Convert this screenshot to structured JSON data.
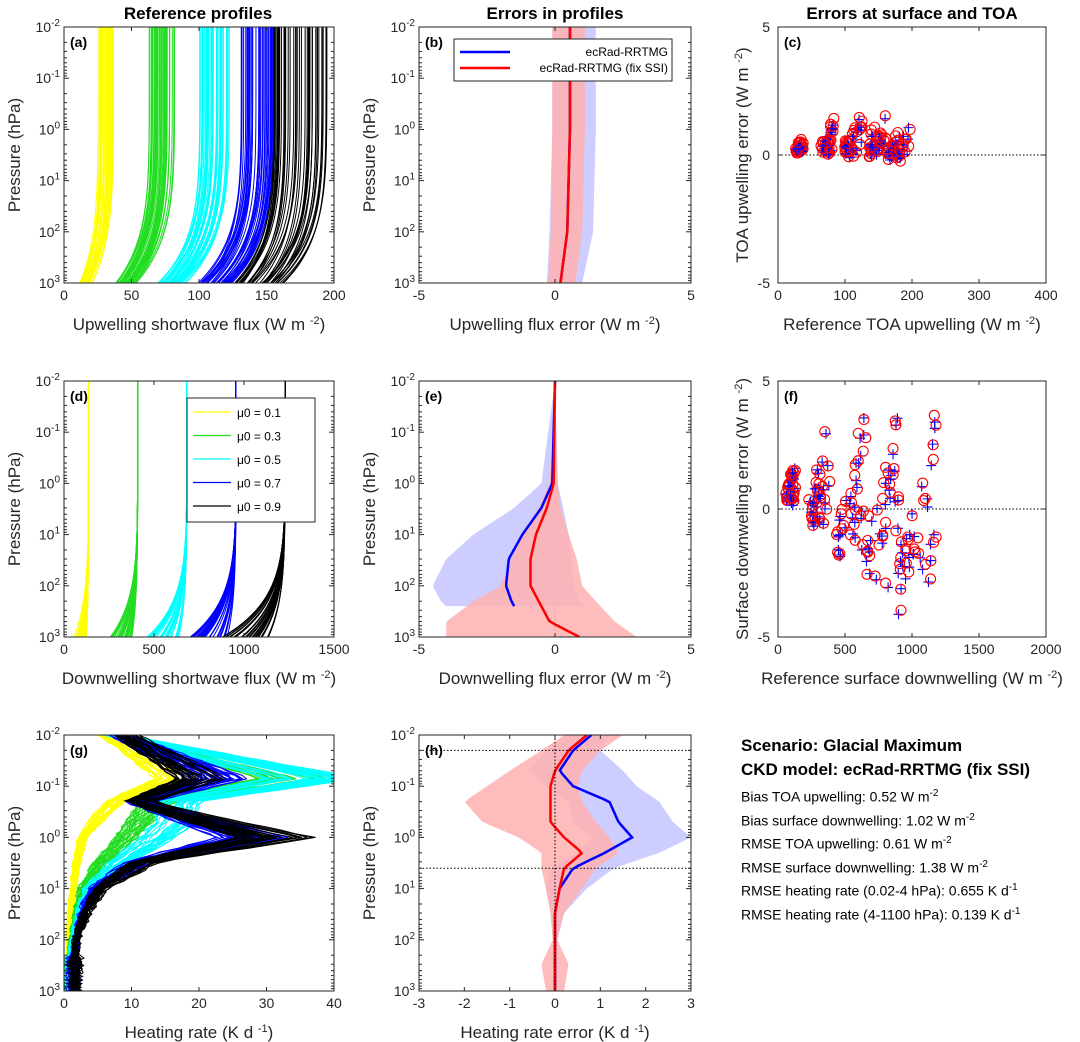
{
  "column_titles": [
    "Reference profiles",
    "Errors in profiles",
    "Errors at surface and TOA"
  ],
  "summary": {
    "scenario": "Scenario: Glacial Maximum",
    "ckd_model": "CKD model: ecRad-RRTMG (fix SSI)",
    "stats": [
      {
        "label": "Bias TOA upwelling:",
        "value": "0.52",
        "unit": "W m",
        "exp": "-2"
      },
      {
        "label": "Bias surface downwelling:",
        "value": "1.02",
        "unit": "W m",
        "exp": "-2"
      },
      {
        "label": "RMSE TOA upwelling:",
        "value": "0.61",
        "unit": "W m",
        "exp": "-2"
      },
      {
        "label": "RMSE surface downwelling:",
        "value": "1.38",
        "unit": "W m",
        "exp": "-2"
      },
      {
        "label": "RMSE heating rate (0.02-4 hPa):",
        "value": "0.655",
        "unit": "K d",
        "exp": "-1"
      },
      {
        "label": "RMSE heating rate (4-1100 hPa):",
        "value": "0.139",
        "unit": "K d",
        "exp": "-1"
      }
    ]
  },
  "colors": {
    "mu01": "#ffff00",
    "mu03": "#22dd22",
    "mu05": "#00ffff",
    "mu07": "#0000ff",
    "mu09": "#000000",
    "rrtmg": "#0000ff",
    "fixssi": "#ff0000",
    "rrtmg_band": "#c8c8ff",
    "fixssi_band": "#ffb0b0"
  },
  "chart_data": [
    {
      "panel": "(a)",
      "type": "line",
      "title": "",
      "xlabel": "Upwelling shortwave flux",
      "xunit": "W m",
      "xexp": "-2",
      "ylabel": "Pressure (hPa)",
      "yscale": "log",
      "yreverse": true,
      "ylim": [
        0.01,
        1000
      ],
      "xlim": [
        0,
        200
      ],
      "xticks": [
        0,
        50,
        100,
        150,
        200
      ],
      "series": [
        {
          "name": "μ0 = 0.1",
          "color": "#ffff00",
          "toa_range": [
            25,
            37
          ],
          "surface_range": [
            10,
            22
          ]
        },
        {
          "name": "μ0 = 0.3",
          "color": "#22dd22",
          "toa_range": [
            63,
            82
          ],
          "surface_range": [
            37,
            55
          ]
        },
        {
          "name": "μ0 = 0.5",
          "color": "#00ffff",
          "toa_range": [
            100,
            123
          ],
          "surface_range": [
            67,
            92
          ]
        },
        {
          "name": "μ0 = 0.7",
          "color": "#0000ff",
          "toa_range": [
            130,
            160
          ],
          "surface_range": [
            97,
            130
          ]
        },
        {
          "name": "μ0 = 0.9",
          "color": "#000000",
          "toa_range": [
            155,
            195
          ],
          "surface_range": [
            125,
            165
          ]
        }
      ]
    },
    {
      "panel": "(b)",
      "type": "line",
      "title": "",
      "xlabel": "Upwelling flux error",
      "xunit": "W m",
      "xexp": "-2",
      "ylabel": "Pressure (hPa)",
      "yscale": "log",
      "yreverse": true,
      "ylim": [
        0.01,
        1000
      ],
      "xlim": [
        -5,
        5
      ],
      "xticks": [
        -5,
        0,
        5
      ],
      "legend": {
        "placement": "top",
        "entries": [
          "ecRad-RRTMG",
          "ecRad-RRTMG (fix SSI)"
        ]
      },
      "series": [
        {
          "name": "ecRad-RRTMG",
          "color": "#0000ff",
          "p": [
            0.01,
            1,
            100,
            1000
          ],
          "mean": [
            0.55,
            0.55,
            0.45,
            0.2
          ],
          "lo": [
            -0.1,
            -0.1,
            -0.2,
            -0.3
          ],
          "hi": [
            1.5,
            1.5,
            1.4,
            1.0
          ]
        },
        {
          "name": "ecRad-RRTMG (fix SSI)",
          "color": "#ff0000",
          "p": [
            0.01,
            1,
            100,
            1000
          ],
          "mean": [
            0.55,
            0.55,
            0.45,
            0.2
          ],
          "lo": [
            -0.1,
            -0.1,
            -0.15,
            -0.25
          ],
          "hi": [
            1.1,
            1.1,
            1.0,
            0.75
          ]
        }
      ]
    },
    {
      "panel": "(c)",
      "type": "scatter",
      "title": "",
      "xlabel": "Reference TOA upwelling",
      "xunit": "W m",
      "xexp": "-2",
      "ylabel": "TOA upwelling error",
      "yunit": "W m",
      "yexp": "-2",
      "xlim": [
        0,
        400
      ],
      "ylim": [
        -5,
        5
      ],
      "xticks": [
        0,
        100,
        200,
        300,
        400
      ],
      "yticks": [
        -5,
        0,
        5
      ],
      "clusters": [
        {
          "x": [
            25,
            38
          ],
          "y": [
            0.1,
            0.7
          ]
        },
        {
          "x": [
            65,
            82
          ],
          "y": [
            0.0,
            1.2
          ]
        },
        {
          "x": [
            100,
            125
          ],
          "y": [
            -0.1,
            1.6
          ]
        },
        {
          "x": [
            135,
            160
          ],
          "y": [
            -0.1,
            2.1
          ]
        },
        {
          "x": [
            165,
            195
          ],
          "y": [
            -0.2,
            1.3
          ]
        }
      ]
    },
    {
      "panel": "(d)",
      "type": "line",
      "title": "",
      "xlabel": "Downwelling shortwave flux",
      "xunit": "W m",
      "xexp": "-2",
      "ylabel": "Pressure (hPa)",
      "yscale": "log",
      "yreverse": true,
      "ylim": [
        0.01,
        1000
      ],
      "xlim": [
        0,
        1500
      ],
      "xticks": [
        0,
        500,
        1000,
        1500
      ],
      "legend": {
        "placement": "top-right",
        "entries": [
          "μ0 = 0.1",
          "μ0 = 0.3",
          "μ0 = 0.5",
          "μ0 = 0.7",
          "μ0 = 0.9"
        ]
      },
      "series": [
        {
          "name": "μ0 = 0.1",
          "color": "#ffff00",
          "toa": 136,
          "surface_range": [
            55,
            125
          ]
        },
        {
          "name": "μ0 = 0.3",
          "color": "#22dd22",
          "toa": 409,
          "surface_range": [
            250,
            380
          ]
        },
        {
          "name": "μ0 = 0.5",
          "color": "#00ffff",
          "toa": 682,
          "surface_range": [
            450,
            640
          ]
        },
        {
          "name": "μ0 = 0.7",
          "color": "#0000ff",
          "toa": 955,
          "surface_range": [
            700,
            910
          ]
        },
        {
          "name": "μ0 = 0.9",
          "color": "#000000",
          "toa": 1228,
          "surface_range": [
            880,
            1180
          ]
        }
      ]
    },
    {
      "panel": "(e)",
      "type": "line",
      "title": "",
      "xlabel": "Downwelling flux error",
      "xunit": "W m",
      "xexp": "-2",
      "ylabel": "Pressure (hPa)",
      "yscale": "log",
      "yreverse": true,
      "ylim": [
        0.01,
        1000
      ],
      "xlim": [
        -5,
        5
      ],
      "xticks": [
        -5,
        0,
        5
      ],
      "series": [
        {
          "name": "ecRad-RRTMG",
          "color": "#0000ff",
          "p": [
            0.01,
            1,
            3,
            10,
            30,
            100,
            200,
            250
          ],
          "mean": [
            0,
            -0.1,
            -0.5,
            -1.2,
            -1.7,
            -1.8,
            -1.6,
            -1.5
          ],
          "lo": [
            0,
            -0.5,
            -1.5,
            -3.0,
            -4.0,
            -4.5,
            -4.2,
            -4.0
          ],
          "hi": [
            0,
            0.1,
            0.3,
            0.5,
            0.6,
            0.7,
            0.9,
            1.0
          ]
        },
        {
          "name": "ecRad-RRTMG (fix SSI)",
          "color": "#ff0000",
          "p": [
            0.01,
            1,
            3,
            10,
            30,
            100,
            200,
            500,
            1000
          ],
          "mean": [
            0,
            -0.05,
            -0.3,
            -0.7,
            -0.9,
            -0.9,
            -0.6,
            -0.2,
            0.9
          ],
          "lo": [
            0,
            -0.2,
            -0.6,
            -1.2,
            -1.6,
            -2.0,
            -3.0,
            -4.0,
            -4.0
          ],
          "hi": [
            0,
            0.1,
            0.2,
            0.5,
            0.8,
            1.0,
            1.5,
            2.2,
            3.0
          ]
        }
      ]
    },
    {
      "panel": "(f)",
      "type": "scatter",
      "title": "",
      "xlabel": "Reference surface downwelling",
      "xunit": "W m",
      "xexp": "-2",
      "ylabel": "Surface downwelling error",
      "yunit": "W m",
      "yexp": "-2",
      "xlim": [
        0,
        2000
      ],
      "ylim": [
        -5,
        5
      ],
      "xticks": [
        0,
        500,
        1000,
        1500,
        2000
      ],
      "yticks": [
        -5,
        0,
        5
      ],
      "clusters": [
        {
          "x": [
            60,
            130
          ],
          "y": [
            0.0,
            2.1
          ]
        },
        {
          "x": [
            240,
            380
          ],
          "y": [
            -0.7,
            3.5
          ]
        },
        {
          "x": [
            450,
            650
          ],
          "y": [
            -2.0,
            3.9
          ]
        },
        {
          "x": [
            650,
            900
          ],
          "y": [
            -3.2,
            4.0
          ]
        },
        {
          "x": [
            880,
            1180
          ],
          "y": [
            -4.2,
            4.0
          ]
        }
      ]
    },
    {
      "panel": "(g)",
      "type": "line",
      "title": "",
      "xlabel": "Heating rate",
      "xunit": "K d",
      "xexp": "-1",
      "ylabel": "Pressure (hPa)",
      "yscale": "log",
      "yreverse": true,
      "ylim": [
        0.01,
        1000
      ],
      "xlim": [
        0,
        40
      ],
      "xticks": [
        0,
        10,
        20,
        30,
        40
      ],
      "series": [
        {
          "name": "μ0 = 0.1",
          "color": "#ffff00",
          "p": [
            0.01,
            0.07,
            0.2,
            0.5,
            1,
            3,
            10,
            30,
            100,
            300,
            1000
          ],
          "hr": [
            7,
            18,
            8,
            5,
            3,
            2,
            1.5,
            1,
            0.8,
            0.5,
            0.3
          ]
        },
        {
          "name": "μ0 = 0.3",
          "color": "#22dd22",
          "p": [
            0.01,
            0.07,
            0.2,
            0.5,
            1,
            3,
            10,
            30,
            100,
            300,
            1000
          ],
          "hr": [
            8,
            38,
            15,
            12,
            10,
            6,
            3,
            2,
            1.2,
            0.8,
            0.5
          ]
        },
        {
          "name": "μ0 = 0.5",
          "color": "#00ffff",
          "p": [
            0.01,
            0.07,
            0.2,
            0.5,
            1,
            3,
            10,
            30,
            100,
            300,
            1000
          ],
          "hr": [
            8,
            40,
            18,
            18,
            15,
            9,
            4,
            2.5,
            1.5,
            1,
            0.8
          ]
        },
        {
          "name": "μ0 = 0.7",
          "color": "#0000ff",
          "p": [
            0.01,
            0.07,
            0.2,
            0.5,
            1,
            3,
            10,
            30,
            100,
            300,
            1000
          ],
          "hr": [
            9,
            25,
            12,
            22,
            30,
            12,
            5,
            3,
            2,
            1.5,
            1.5
          ]
        },
        {
          "name": "μ0 = 0.9",
          "color": "#000000",
          "p": [
            0.01,
            0.07,
            0.2,
            0.5,
            1,
            3,
            10,
            30,
            100,
            300,
            1000
          ],
          "hr": [
            10,
            22,
            12,
            24,
            34,
            13,
            6,
            3.5,
            2,
            1.8,
            2
          ]
        }
      ]
    },
    {
      "panel": "(h)",
      "type": "line",
      "title": "",
      "xlabel": "Heating rate error",
      "xunit": "K d",
      "xexp": "-1",
      "ylabel": "Pressure (hPa)",
      "yscale": "log",
      "yreverse": true,
      "ylim": [
        0.01,
        1000
      ],
      "xlim": [
        -3,
        3
      ],
      "xticks": [
        -3,
        -2,
        -1,
        0,
        1,
        2,
        3
      ],
      "hlines_p": [
        0.02,
        4
      ],
      "series": [
        {
          "name": "ecRad-RRTMG",
          "color": "#0000ff",
          "p": [
            0.01,
            0.02,
            0.05,
            0.1,
            0.2,
            0.5,
            1,
            2,
            4,
            10,
            30,
            100,
            1000
          ],
          "mean": [
            0.8,
            0.4,
            0.1,
            0.4,
            1.2,
            1.4,
            1.7,
            1.1,
            0.4,
            0.1,
            0,
            0,
            0
          ],
          "lo": [
            0.3,
            -0.2,
            -0.6,
            -0.2,
            0.3,
            0.4,
            0.8,
            0.5,
            -0.1,
            -0.2,
            -0.1,
            -0.05,
            -0.05
          ],
          "hi": [
            1.2,
            1.0,
            1.5,
            1.8,
            2.3,
            2.6,
            3.0,
            2.3,
            1.3,
            0.7,
            0.2,
            0.05,
            0.05
          ]
        },
        {
          "name": "ecRad-RRTMG (fix SSI)",
          "color": "#ff0000",
          "p": [
            0.01,
            0.02,
            0.05,
            0.1,
            0.2,
            0.5,
            1,
            2,
            4,
            10,
            30,
            100,
            300,
            1000
          ],
          "mean": [
            0.7,
            0.3,
            0.0,
            -0.1,
            -0.1,
            -0.1,
            0.2,
            0.6,
            0.2,
            0.1,
            0,
            0,
            0,
            0
          ],
          "lo": [
            0.2,
            -0.3,
            -1.0,
            -1.5,
            -2.0,
            -1.6,
            -0.8,
            -0.3,
            -0.3,
            -0.2,
            -0.1,
            -0.05,
            -0.3,
            -0.2
          ],
          "hi": [
            1.5,
            1.0,
            0.6,
            0.5,
            0.6,
            0.9,
            1.2,
            1.4,
            0.9,
            0.6,
            0.2,
            0.05,
            0.3,
            0.2
          ]
        }
      ]
    }
  ]
}
